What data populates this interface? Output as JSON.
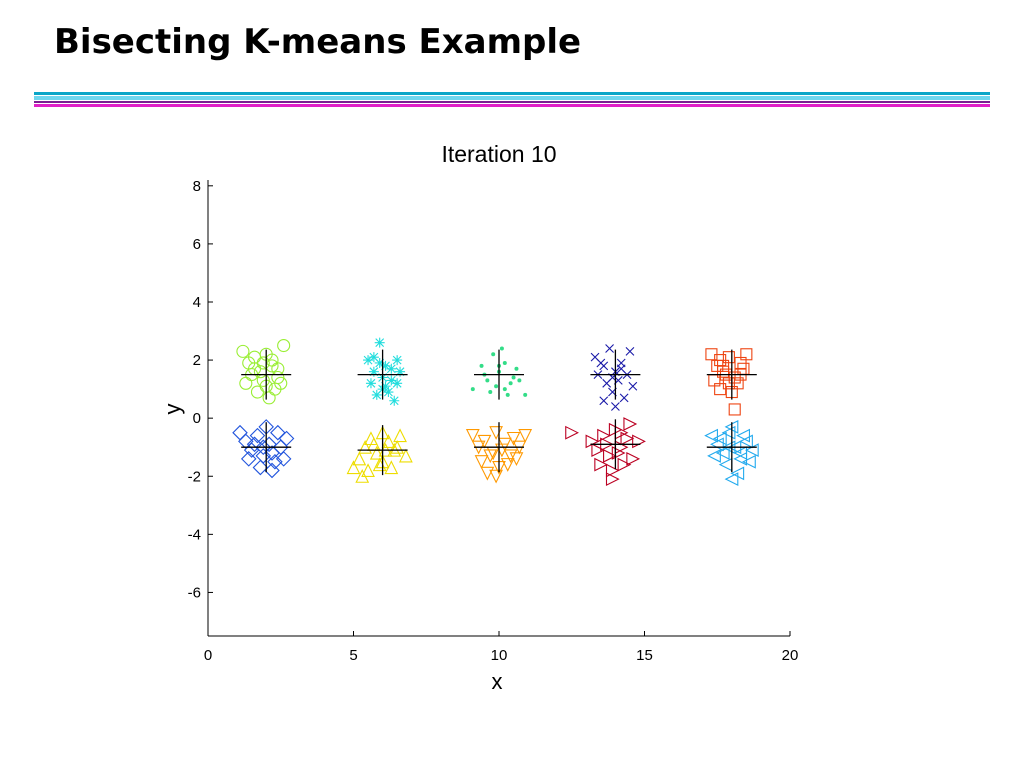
{
  "slide": {
    "title": "Bisecting K-means Example",
    "rule_colors": [
      "#0aa6c8",
      "#6ed6ee",
      "#7a1e90",
      "#e020c8"
    ]
  },
  "chart_data": {
    "type": "scatter",
    "title": "Iteration 10",
    "xlabel": "x",
    "ylabel": "y",
    "xlim": [
      0,
      20
    ],
    "ylim": [
      -7.5,
      8.2
    ],
    "xticks": [
      0,
      5,
      10,
      15,
      20
    ],
    "yticks": [
      -6,
      -4,
      -2,
      0,
      2,
      4,
      6,
      8
    ],
    "grid": false,
    "clusters": [
      {
        "marker": "circle",
        "color": "#99ee33",
        "center": [
          2,
          1.5
        ],
        "points": [
          [
            1.2,
            2.3
          ],
          [
            1.4,
            1.9
          ],
          [
            1.6,
            2.1
          ],
          [
            1.8,
            1.6
          ],
          [
            2.0,
            2.2
          ],
          [
            2.2,
            1.8
          ],
          [
            2.4,
            1.4
          ],
          [
            2.6,
            2.5
          ],
          [
            1.3,
            1.2
          ],
          [
            1.5,
            1.5
          ],
          [
            1.7,
            0.9
          ],
          [
            1.9,
            1.3
          ],
          [
            2.1,
            0.7
          ],
          [
            2.3,
            1.0
          ],
          [
            2.5,
            1.2
          ],
          [
            1.6,
            1.7
          ],
          [
            2.2,
            2.0
          ],
          [
            1.9,
            1.9
          ],
          [
            2.0,
            1.1
          ],
          [
            2.4,
            1.7
          ]
        ]
      },
      {
        "marker": "asterisk",
        "color": "#22dddd",
        "center": [
          6,
          1.5
        ],
        "points": [
          [
            5.5,
            2.0
          ],
          [
            5.7,
            1.6
          ],
          [
            5.9,
            2.6
          ],
          [
            6.1,
            1.8
          ],
          [
            6.3,
            1.3
          ],
          [
            6.5,
            2.0
          ],
          [
            5.6,
            1.2
          ],
          [
            5.8,
            0.8
          ],
          [
            6.0,
            1.4
          ],
          [
            6.2,
            0.9
          ],
          [
            6.4,
            0.6
          ],
          [
            6.6,
            1.6
          ],
          [
            5.9,
            1.9
          ],
          [
            6.1,
            1.1
          ],
          [
            5.7,
            2.1
          ],
          [
            6.3,
            1.7
          ],
          [
            6.0,
            1.0
          ],
          [
            6.5,
            1.2
          ]
        ]
      },
      {
        "marker": "dot",
        "color": "#33dd88",
        "center": [
          10,
          1.5
        ],
        "points": [
          [
            9.1,
            1.0
          ],
          [
            9.4,
            1.8
          ],
          [
            9.6,
            1.3
          ],
          [
            9.8,
            2.2
          ],
          [
            10.0,
            1.6
          ],
          [
            10.2,
            1.9
          ],
          [
            10.4,
            1.2
          ],
          [
            10.6,
            1.7
          ],
          [
            10.9,
            0.8
          ],
          [
            9.7,
            0.9
          ],
          [
            10.1,
            2.4
          ],
          [
            10.3,
            0.8
          ],
          [
            10.5,
            1.4
          ],
          [
            9.5,
            1.5
          ],
          [
            9.9,
            1.1
          ],
          [
            10.7,
            1.3
          ],
          [
            10.0,
            1.8
          ],
          [
            10.2,
            1.0
          ]
        ]
      },
      {
        "marker": "x",
        "color": "#1a1aa8",
        "center": [
          14,
          1.5
        ],
        "points": [
          [
            13.3,
            2.1
          ],
          [
            13.6,
            1.8
          ],
          [
            13.8,
            2.4
          ],
          [
            14.0,
            1.6
          ],
          [
            14.2,
            1.9
          ],
          [
            14.5,
            2.3
          ],
          [
            13.4,
            1.5
          ],
          [
            13.7,
            1.2
          ],
          [
            13.9,
            0.9
          ],
          [
            14.1,
            1.3
          ],
          [
            14.3,
            0.7
          ],
          [
            14.4,
            1.5
          ],
          [
            13.6,
            0.6
          ],
          [
            14.0,
            0.4
          ],
          [
            14.6,
            1.1
          ],
          [
            13.5,
            1.9
          ],
          [
            14.2,
            1.7
          ],
          [
            13.9,
            1.4
          ]
        ]
      },
      {
        "marker": "square",
        "color": "#ee4411",
        "center": [
          18,
          1.5
        ],
        "points": [
          [
            17.3,
            2.2
          ],
          [
            17.5,
            1.8
          ],
          [
            17.7,
            1.6
          ],
          [
            17.9,
            2.1
          ],
          [
            18.1,
            1.4
          ],
          [
            18.3,
            1.9
          ],
          [
            18.5,
            2.2
          ],
          [
            17.4,
            1.3
          ],
          [
            17.6,
            1.0
          ],
          [
            17.8,
            1.5
          ],
          [
            18.0,
            0.9
          ],
          [
            18.2,
            1.2
          ],
          [
            18.4,
            1.7
          ],
          [
            17.6,
            2.0
          ],
          [
            18.1,
            0.3
          ],
          [
            17.9,
            1.2
          ],
          [
            18.3,
            1.5
          ],
          [
            17.7,
            1.8
          ]
        ]
      },
      {
        "marker": "diamond",
        "color": "#2255dd",
        "center": [
          2,
          -1
        ],
        "points": [
          [
            1.1,
            -0.5
          ],
          [
            1.3,
            -0.8
          ],
          [
            1.5,
            -1.1
          ],
          [
            1.7,
            -0.6
          ],
          [
            1.9,
            -1.3
          ],
          [
            2.1,
            -0.9
          ],
          [
            2.3,
            -1.5
          ],
          [
            2.5,
            -1.0
          ],
          [
            2.7,
            -0.7
          ],
          [
            1.4,
            -1.4
          ],
          [
            1.6,
            -0.9
          ],
          [
            1.8,
            -1.7
          ],
          [
            2.0,
            -0.3
          ],
          [
            2.2,
            -1.2
          ],
          [
            2.4,
            -0.5
          ],
          [
            2.6,
            -1.4
          ],
          [
            1.9,
            -1.0
          ],
          [
            2.2,
            -1.8
          ]
        ]
      },
      {
        "marker": "triangle-up",
        "color": "#eedd00",
        "center": [
          6,
          -1.1
        ],
        "points": [
          [
            5.0,
            -1.7
          ],
          [
            5.2,
            -1.4
          ],
          [
            5.4,
            -1.0
          ],
          [
            5.6,
            -0.7
          ],
          [
            5.8,
            -1.2
          ],
          [
            6.0,
            -1.5
          ],
          [
            6.2,
            -0.8
          ],
          [
            6.4,
            -1.1
          ],
          [
            6.6,
            -0.6
          ],
          [
            6.8,
            -1.3
          ],
          [
            5.5,
            -1.8
          ],
          [
            5.7,
            -0.9
          ],
          [
            5.9,
            -1.6
          ],
          [
            6.1,
            -1.1
          ],
          [
            6.3,
            -1.7
          ],
          [
            5.3,
            -2.0
          ],
          [
            6.5,
            -1.0
          ],
          [
            6.0,
            -0.5
          ]
        ]
      },
      {
        "marker": "triangle-down",
        "color": "#ff9900",
        "center": [
          10,
          -1
        ],
        "points": [
          [
            9.1,
            -0.6
          ],
          [
            9.3,
            -1.0
          ],
          [
            9.5,
            -0.8
          ],
          [
            9.7,
            -1.3
          ],
          [
            9.9,
            -0.5
          ],
          [
            10.1,
            -1.1
          ],
          [
            10.3,
            -1.6
          ],
          [
            10.5,
            -0.7
          ],
          [
            10.7,
            -1.0
          ],
          [
            10.9,
            -0.6
          ],
          [
            9.4,
            -1.5
          ],
          [
            9.6,
            -1.9
          ],
          [
            9.8,
            -1.2
          ],
          [
            10.0,
            -1.7
          ],
          [
            10.2,
            -0.9
          ],
          [
            10.4,
            -1.3
          ],
          [
            9.9,
            -2.0
          ],
          [
            10.6,
            -1.4
          ]
        ]
      },
      {
        "marker": "triangle-right",
        "color": "#bb0022",
        "center": [
          14,
          -0.9
        ],
        "points": [
          [
            12.5,
            -0.5
          ],
          [
            13.2,
            -0.8
          ],
          [
            13.4,
            -1.1
          ],
          [
            13.6,
            -0.6
          ],
          [
            13.8,
            -1.3
          ],
          [
            14.0,
            -0.4
          ],
          [
            14.2,
            -1.0
          ],
          [
            14.4,
            -0.7
          ],
          [
            14.6,
            -1.4
          ],
          [
            14.8,
            -0.8
          ],
          [
            13.5,
            -1.6
          ],
          [
            13.7,
            -0.9
          ],
          [
            13.9,
            -1.8
          ],
          [
            14.1,
            -1.2
          ],
          [
            14.3,
            -1.6
          ],
          [
            14.5,
            -0.2
          ],
          [
            13.9,
            -2.1
          ],
          [
            14.2,
            -0.5
          ]
        ]
      },
      {
        "marker": "triangle-left",
        "color": "#22aaee",
        "center": [
          18,
          -1
        ],
        "points": [
          [
            17.3,
            -0.6
          ],
          [
            17.5,
            -0.9
          ],
          [
            17.7,
            -1.2
          ],
          [
            17.9,
            -0.5
          ],
          [
            18.1,
            -1.0
          ],
          [
            18.3,
            -1.4
          ],
          [
            18.5,
            -0.8
          ],
          [
            18.7,
            -1.1
          ],
          [
            17.4,
            -1.3
          ],
          [
            17.6,
            -0.7
          ],
          [
            17.8,
            -1.6
          ],
          [
            18.0,
            -0.3
          ],
          [
            18.2,
            -1.9
          ],
          [
            18.4,
            -0.6
          ],
          [
            18.6,
            -1.5
          ],
          [
            18.0,
            -2.1
          ],
          [
            17.9,
            -1.0
          ],
          [
            18.3,
            -1.2
          ]
        ]
      }
    ]
  }
}
